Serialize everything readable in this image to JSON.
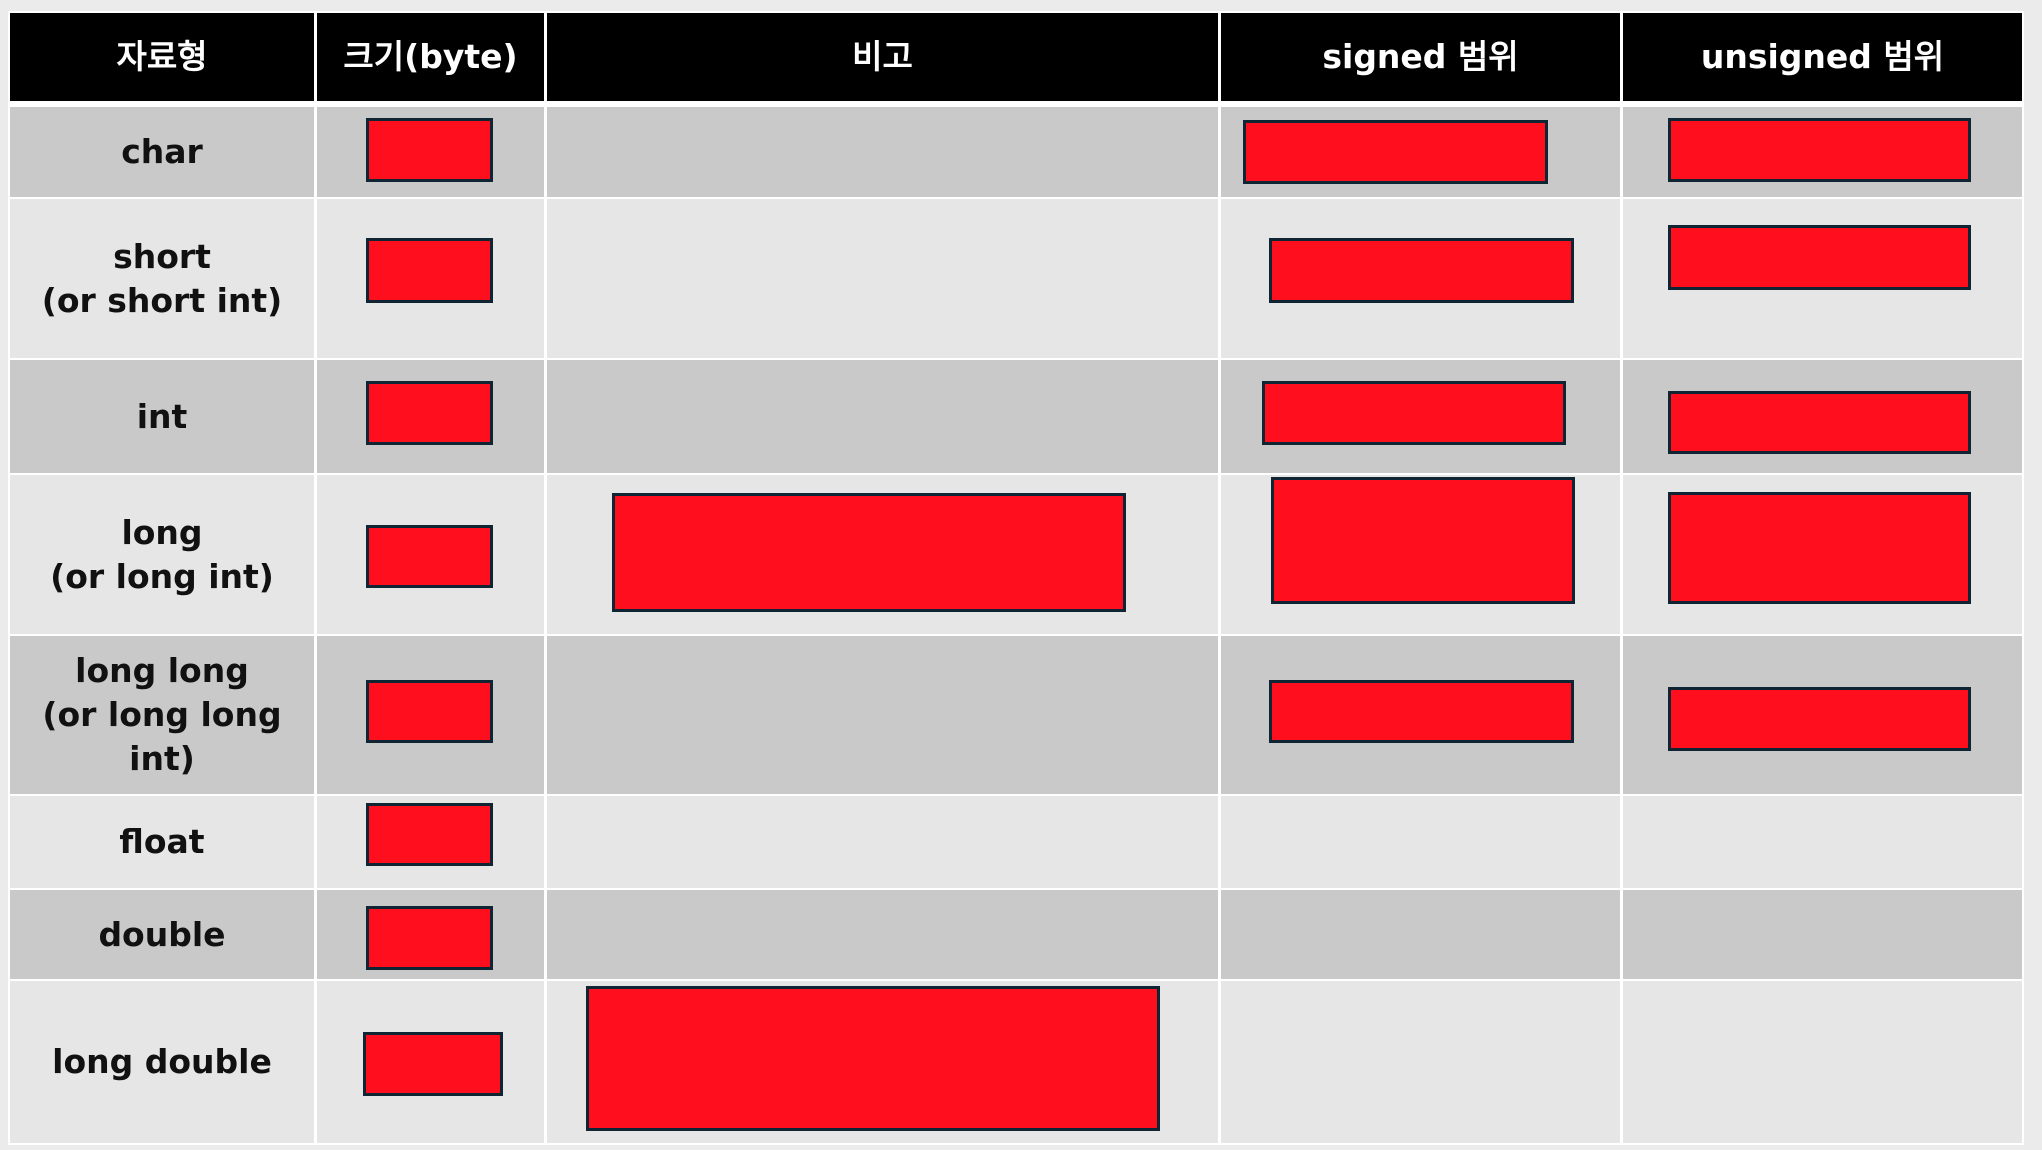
{
  "table": {
    "headers": [
      "자료형",
      "크기(byte)",
      "비고",
      "signed 범위",
      "unsigned 범위"
    ],
    "rows": [
      {
        "type": [
          "char"
        ]
      },
      {
        "type": [
          "short",
          "(or short int)"
        ]
      },
      {
        "type": [
          "int"
        ]
      },
      {
        "type": [
          "long",
          "(or long int)"
        ]
      },
      {
        "type": [
          "long long",
          "(or long long int)"
        ]
      },
      {
        "type": [
          "float"
        ]
      },
      {
        "type": [
          "double"
        ]
      },
      {
        "type": [
          "long double"
        ]
      }
    ]
  },
  "colors": {
    "header_bg": "#000000",
    "row_dark": "#c9c9c9",
    "row_light": "#e6e6e6",
    "redaction": "#ff0f1e"
  }
}
